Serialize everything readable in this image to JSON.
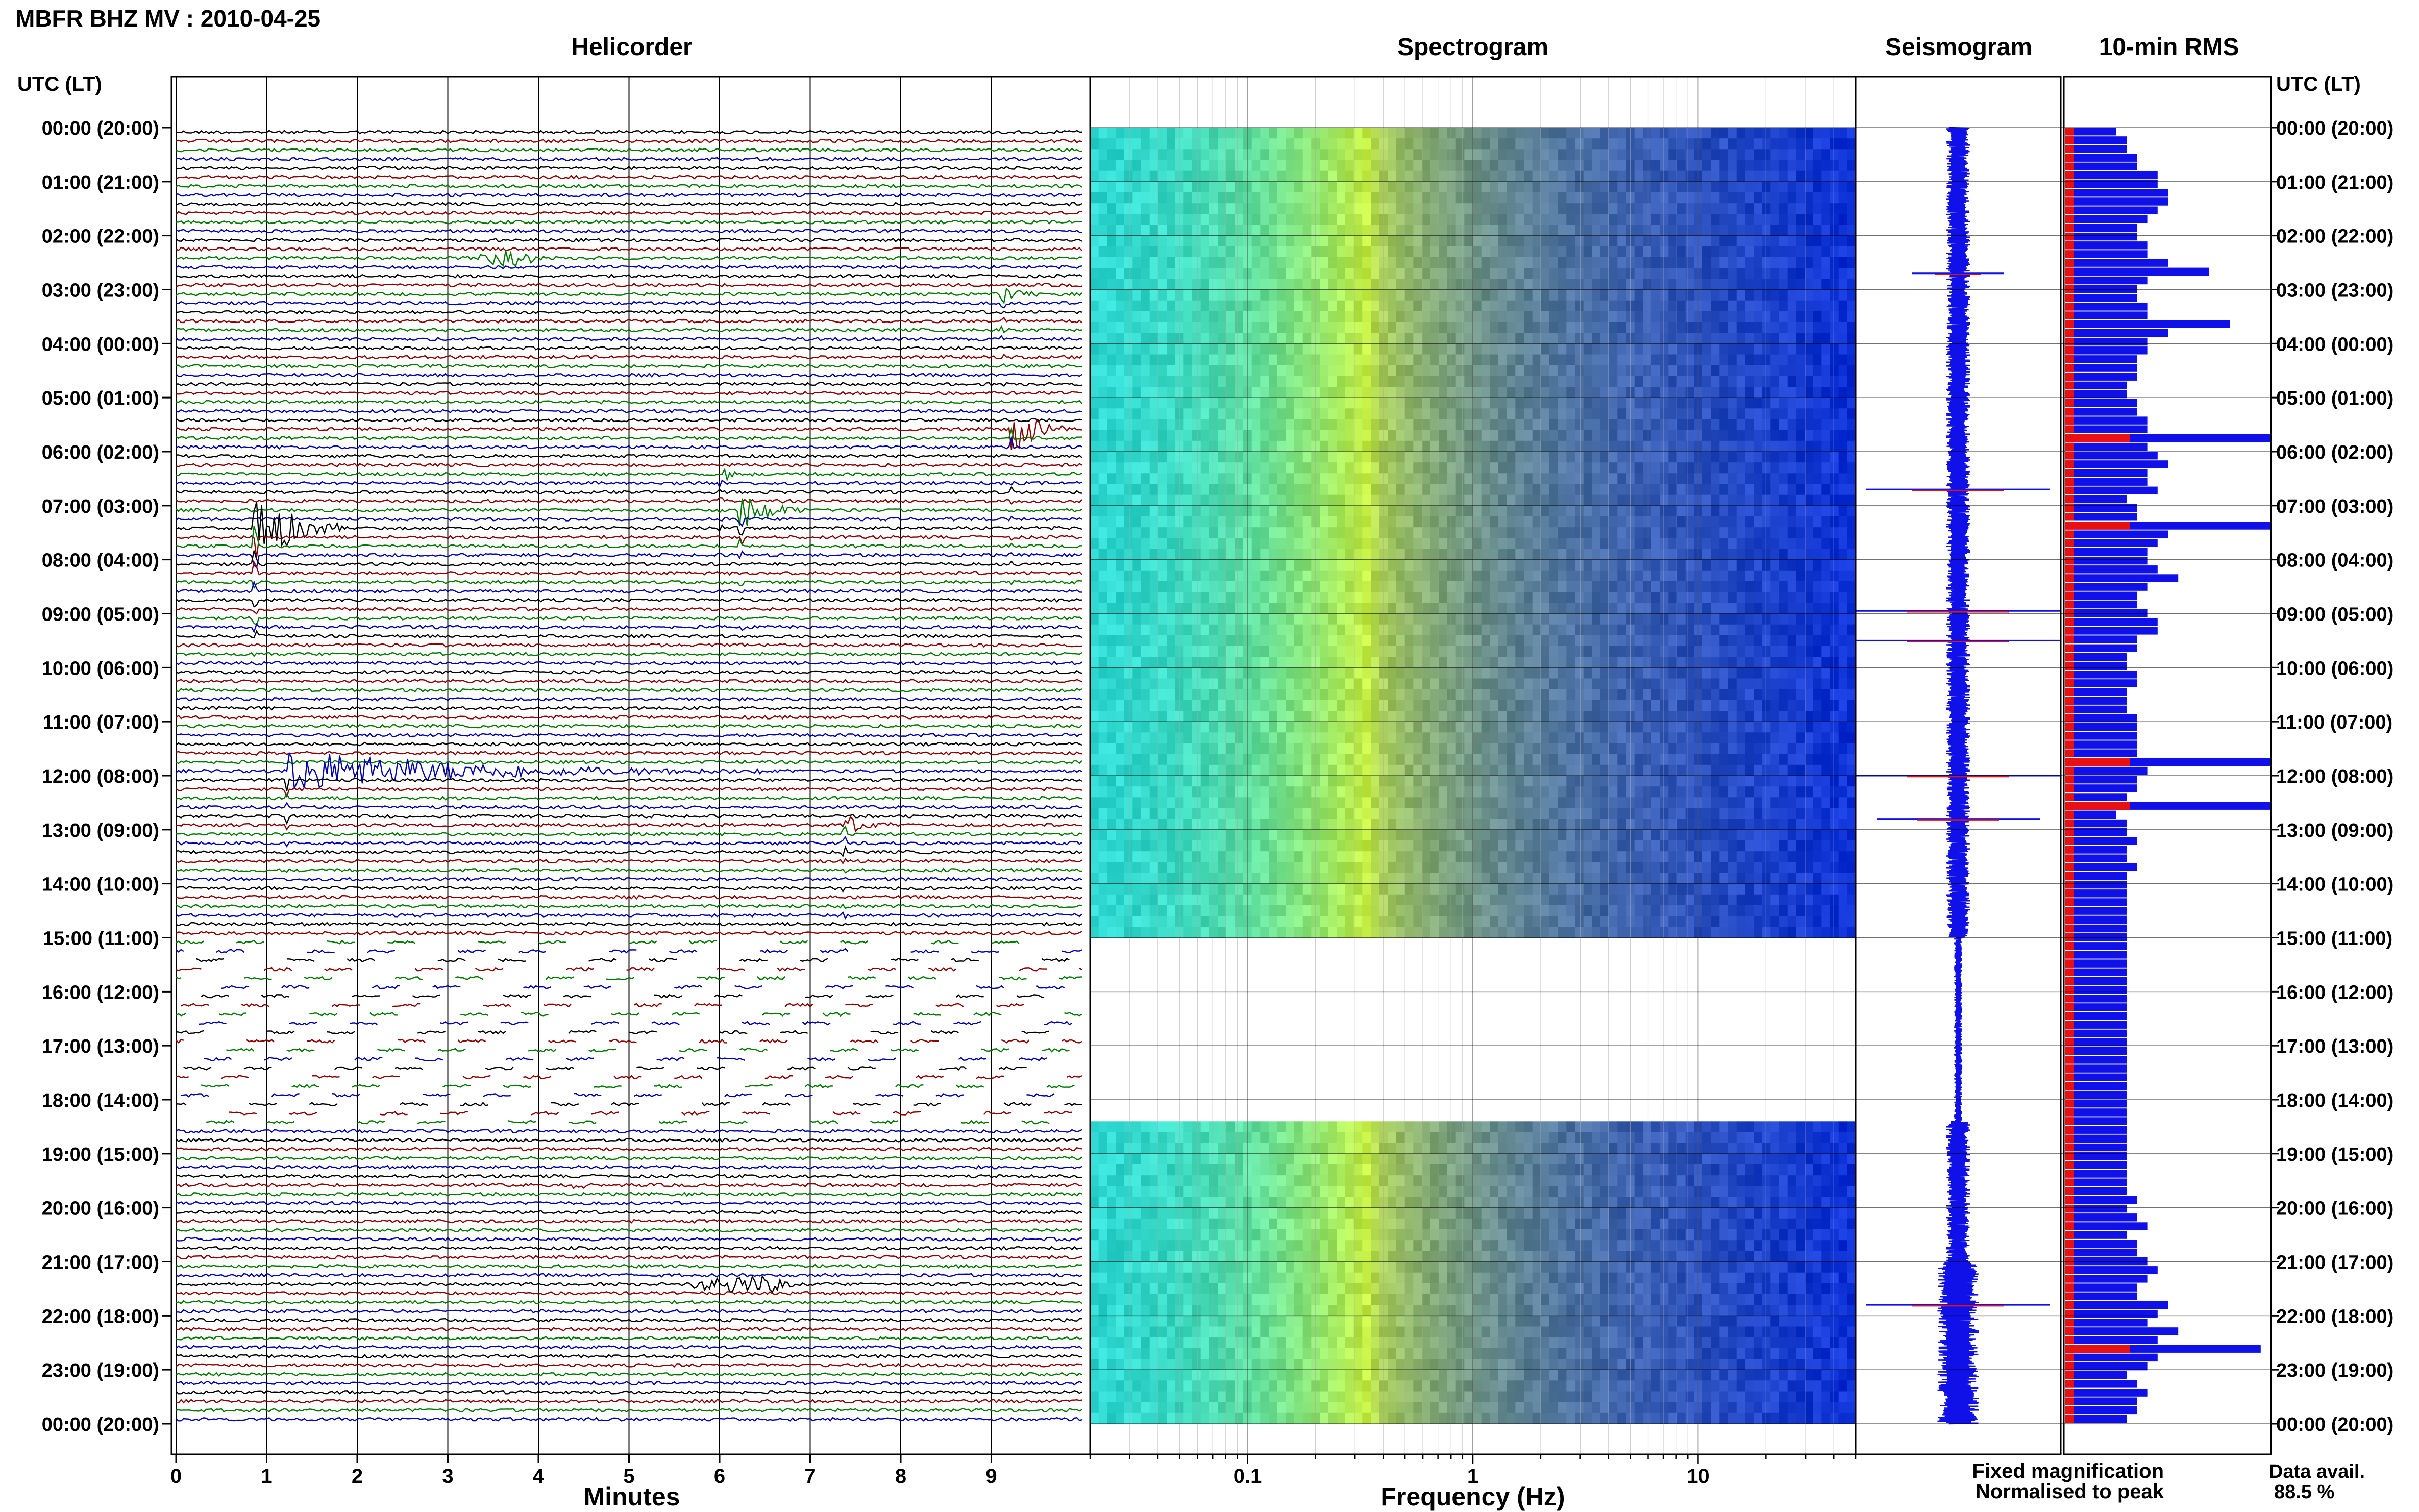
{
  "header": {
    "station_title": "MBFR BHZ MV : 2010-04-25",
    "helicorder_title": "Helicorder",
    "spectrogram_title": "Spectrogram",
    "seismogram_title": "Seismogram",
    "rms_title": "10-min RMS",
    "time_axis_label": "UTC (LT)"
  },
  "legend": {
    "fixed_label": "Fixed magnification",
    "normalised_label": "Normalised to peak",
    "fixed_color": "#1010e8",
    "normalised_color": "#e81010",
    "data_avail_label": "Data avail.",
    "data_avail_value": "88.5 %"
  },
  "colors": {
    "trace_cycle": [
      "#000000",
      "#8b0000",
      "#007a00",
      "#0000b0"
    ],
    "spec_low": "#2ed8d0",
    "spec_mid": "#c8ee40",
    "spec_high": "#0a2fd8"
  },
  "chart_data": [
    {
      "type": "line",
      "name": "helicorder",
      "xlabel": "Minutes",
      "xlim": [
        0,
        10
      ],
      "x_ticks": [
        "0",
        "1",
        "2",
        "3",
        "4",
        "5",
        "6",
        "7",
        "8",
        "9"
      ],
      "hour_labels": [
        "00:00 (20:00)",
        "01:00 (21:00)",
        "02:00 (22:00)",
        "03:00 (23:00)",
        "04:00 (00:00)",
        "05:00 (01:00)",
        "06:00 (02:00)",
        "07:00 (03:00)",
        "08:00 (04:00)",
        "09:00 (05:00)",
        "10:00 (06:00)",
        "11:00 (07:00)",
        "12:00 (08:00)",
        "13:00 (09:00)",
        "14:00 (10:00)",
        "15:00 (11:00)",
        "16:00 (12:00)",
        "17:00 (13:00)",
        "18:00 (14:00)",
        "19:00 (15:00)",
        "20:00 (16:00)",
        "21:00 (17:00)",
        "22:00 (18:00)",
        "23:00 (19:00)",
        "00:00 (20:00)"
      ],
      "rows_per_hour": 6,
      "gap_hours": [
        15.0,
        18.4
      ],
      "events": [
        {
          "row": 14,
          "minute": 3.2,
          "amp": 0.8,
          "dur": 0.9,
          "shape": "spindle"
        },
        {
          "row": 18,
          "minute": 9.1,
          "amp": 1.5,
          "dur": 0.5,
          "shape": "burst"
        },
        {
          "row": 38,
          "minute": 6.0,
          "amp": 1.0,
          "dur": 0.4,
          "shape": "burst"
        },
        {
          "row": 44,
          "minute": 0.85,
          "amp": 6.0,
          "dur": 1.0,
          "shape": "burst"
        },
        {
          "row": 42,
          "minute": 6.2,
          "amp": 3.0,
          "dur": 0.8,
          "shape": "burst"
        },
        {
          "row": 33,
          "minute": 9.2,
          "amp": 3.5,
          "dur": 0.8,
          "shape": "burst"
        },
        {
          "row": 71,
          "minute": 1.2,
          "amp": 2.6,
          "dur": 5.5,
          "shape": "burst"
        },
        {
          "row": 77,
          "minute": 7.35,
          "amp": 1.8,
          "dur": 0.6,
          "shape": "burst"
        },
        {
          "row": 128,
          "minute": 5.5,
          "amp": 1.0,
          "dur": 1.5,
          "shape": "spindle"
        },
        {
          "row": 117,
          "minute": 4.3,
          "amp": 0.5,
          "dur": 0.4,
          "shape": "spindle"
        }
      ]
    },
    {
      "type": "heatmap",
      "name": "spectrogram",
      "xlabel": "Frequency (Hz)",
      "x_scale": "log",
      "xlim": [
        0.02,
        50
      ],
      "x_ticks": [
        "0.1",
        "1",
        "10"
      ],
      "peak_frequency_hz": 0.35,
      "gap_hours": [
        14.95,
        18.4
      ]
    },
    {
      "type": "line",
      "name": "seismogram",
      "gap_hours": [
        15.0,
        18.4
      ],
      "spikes": [
        {
          "hour": 2.7,
          "size": 0.45
        },
        {
          "hour": 6.7,
          "size": 0.9
        },
        {
          "hour": 8.95,
          "size": 1.0
        },
        {
          "hour": 9.5,
          "size": 1.0
        },
        {
          "hour": 12.0,
          "size": 1.0
        },
        {
          "hour": 12.8,
          "size": 0.8
        },
        {
          "hour": 21.8,
          "size": 0.9
        }
      ]
    },
    {
      "type": "bar",
      "name": "rms",
      "bars_per_hour": 6,
      "levels": [
        0.25,
        0.3,
        0.3,
        0.35,
        0.35,
        0.45,
        0.45,
        0.5,
        0.5,
        0.45,
        0.4,
        0.35,
        0.35,
        0.4,
        0.4,
        0.5,
        0.7,
        0.4,
        0.35,
        0.35,
        0.4,
        0.4,
        0.8,
        0.5,
        0.4,
        0.4,
        0.35,
        0.35,
        0.35,
        0.3,
        0.3,
        0.35,
        0.35,
        0.4,
        0.4,
        1.0,
        0.4,
        0.45,
        0.5,
        0.4,
        0.4,
        0.45,
        0.3,
        0.35,
        0.35,
        1.0,
        0.5,
        0.45,
        0.4,
        0.4,
        0.45,
        0.55,
        0.4,
        0.35,
        0.35,
        0.4,
        0.45,
        0.45,
        0.35,
        0.35,
        0.3,
        0.3,
        0.35,
        0.35,
        0.3,
        0.3,
        0.3,
        0.35,
        0.35,
        0.35,
        0.35,
        0.35,
        1.0,
        0.4,
        0.35,
        0.35,
        0.3,
        1.0,
        0.25,
        0.3,
        0.3,
        0.35,
        0.3,
        0.3,
        0.35,
        0.3,
        0.3,
        0.3,
        0.3,
        0.3,
        0.3,
        0.3,
        0.3,
        0.3,
        0.3,
        0.3,
        0.3,
        0.3,
        0.3,
        0.3,
        0.3,
        0.3,
        0.3,
        0.3,
        0.3,
        0.3,
        0.3,
        0.3,
        0.3,
        0.3,
        0.3,
        0.3,
        0.3,
        0.3,
        0.3,
        0.3,
        0.3,
        0.3,
        0.3,
        0.3,
        0.3,
        0.3,
        0.35,
        0.3,
        0.35,
        0.4,
        0.3,
        0.35,
        0.35,
        0.4,
        0.45,
        0.4,
        0.35,
        0.35,
        0.5,
        0.45,
        0.4,
        0.55,
        0.45,
        0.95,
        0.45,
        0.4,
        0.3,
        0.35,
        0.4,
        0.35,
        0.35,
        0.3
      ]
    }
  ]
}
